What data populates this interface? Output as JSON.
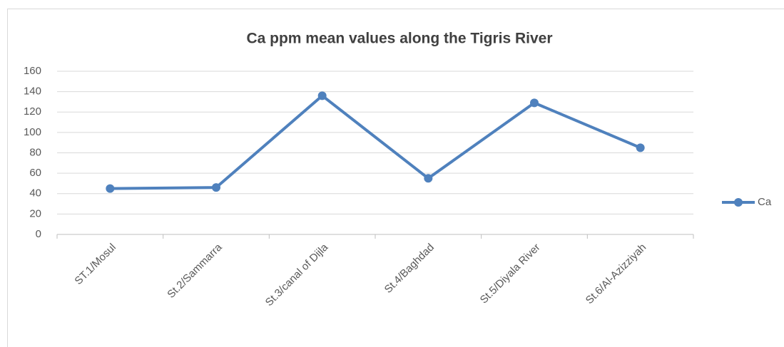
{
  "chart_data": {
    "type": "line",
    "title": "Ca ppm mean values along the Tigris River",
    "categories": [
      "ST.1/Mosul",
      "St.2/Sammarra",
      "St.3/canal of Dijla",
      "St.4/Baghdad",
      "St.5/Diyala River",
      "St.6/Al-Azizziyah"
    ],
    "series": [
      {
        "name": "Ca",
        "color": "#4f81bd",
        "values": [
          45,
          46,
          136,
          55,
          129,
          85
        ]
      }
    ],
    "ylim": [
      0,
      160
    ],
    "yticks": [
      0,
      20,
      40,
      60,
      80,
      100,
      120,
      140,
      160
    ],
    "grid": true,
    "legend": "right"
  }
}
